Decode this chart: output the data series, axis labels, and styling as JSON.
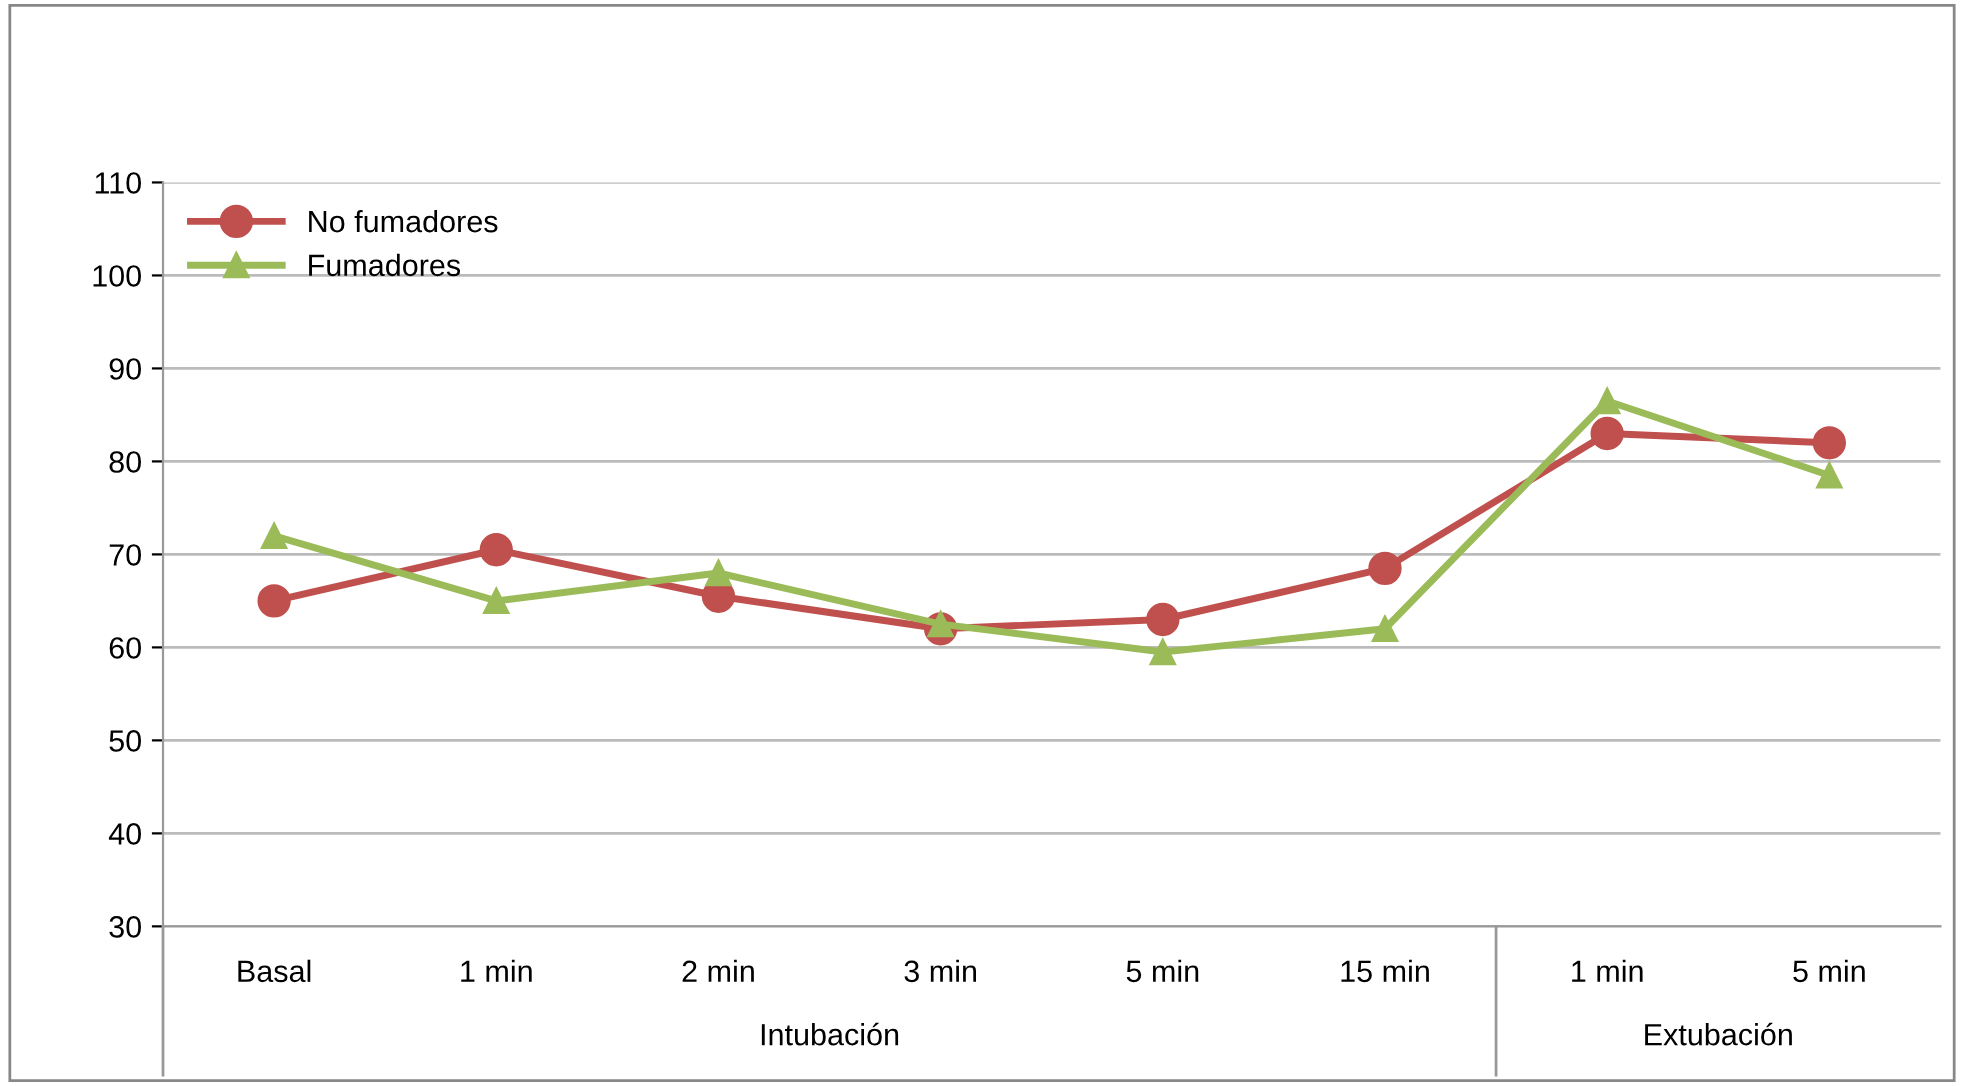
{
  "chart_data": {
    "type": "line",
    "categories": [
      "Basal",
      "1 min",
      "2 min",
      "3 min",
      "5 min",
      "15 min",
      "1 min",
      "5 min"
    ],
    "series": [
      {
        "name": "No fumadores",
        "color": "#c0504d",
        "marker": "circle",
        "values": [
          65,
          70.5,
          65.5,
          62,
          63,
          68.5,
          83,
          82
        ]
      },
      {
        "name": "Fumadores",
        "color": "#9bbb59",
        "marker": "triangle",
        "values": [
          72,
          65,
          68,
          62.5,
          59.5,
          62,
          86.5,
          78.5
        ]
      }
    ],
    "ylim": [
      30,
      110
    ],
    "yticks": [
      30,
      40,
      50,
      60,
      70,
      80,
      90,
      100,
      110
    ],
    "grid": "y",
    "legend": "top left",
    "line_style": "solid",
    "annotations": [
      "Intubación",
      "Extubación"
    ]
  }
}
